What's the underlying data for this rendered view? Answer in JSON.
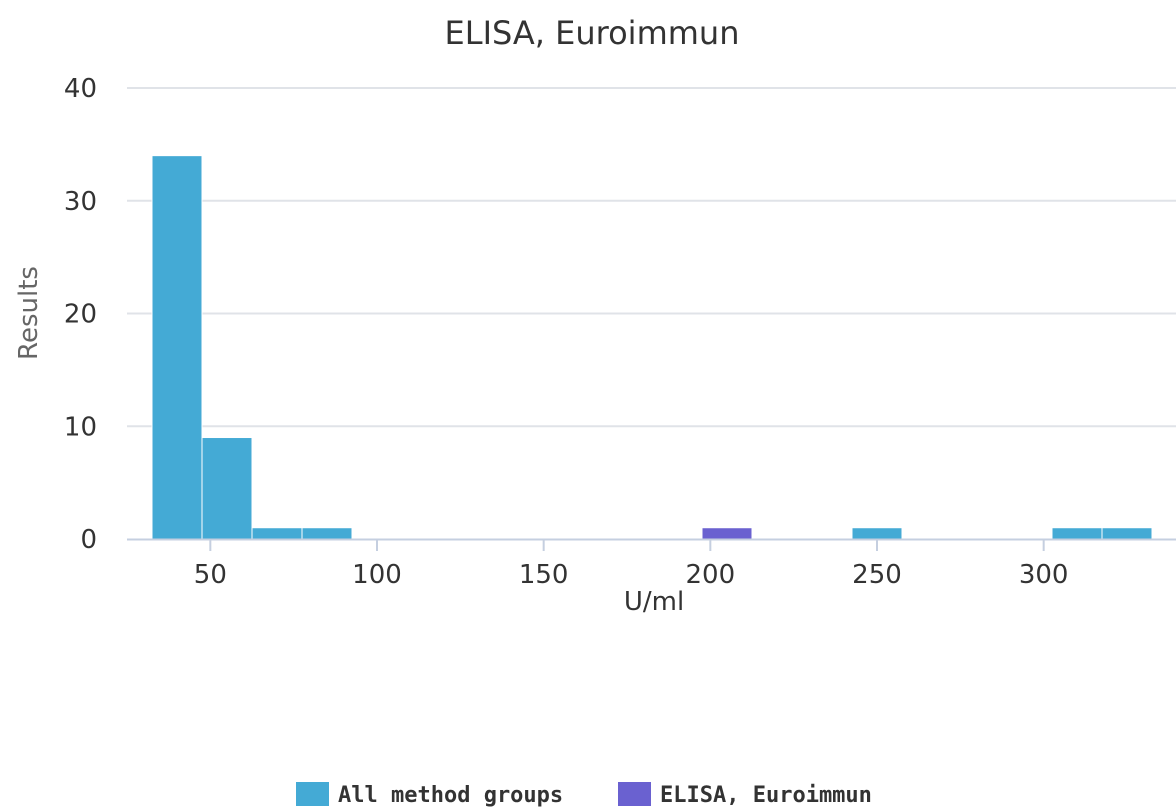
{
  "chart_data": {
    "type": "bar",
    "title": "ELISA, Euroimmun",
    "xlabel": "U/ml",
    "ylabel": "Results",
    "xlim": [
      25,
      332
    ],
    "ylim": [
      0,
      40
    ],
    "x_ticks": [
      50,
      100,
      150,
      200,
      250,
      300
    ],
    "y_ticks": [
      0,
      10,
      20,
      30,
      40
    ],
    "grid": true,
    "legend_position": "bottom",
    "series": [
      {
        "name": "All method groups",
        "color": "#44aad5",
        "bins": [
          {
            "x0": 32.5,
            "x1": 47.5,
            "value": 34
          },
          {
            "x0": 47.5,
            "x1": 62.5,
            "value": 9
          },
          {
            "x0": 62.5,
            "x1": 77.5,
            "value": 1
          },
          {
            "x0": 77.5,
            "x1": 92.5,
            "value": 1
          },
          {
            "x0": 242.5,
            "x1": 257.5,
            "value": 1
          },
          {
            "x0": 302.5,
            "x1": 317.5,
            "value": 1
          },
          {
            "x0": 317.5,
            "x1": 332.5,
            "value": 1
          }
        ]
      },
      {
        "name": "ELISA, Euroimmun",
        "color": "#6a61d0",
        "bins": [
          {
            "x0": 197.5,
            "x1": 212.5,
            "value": 1
          }
        ]
      }
    ]
  }
}
